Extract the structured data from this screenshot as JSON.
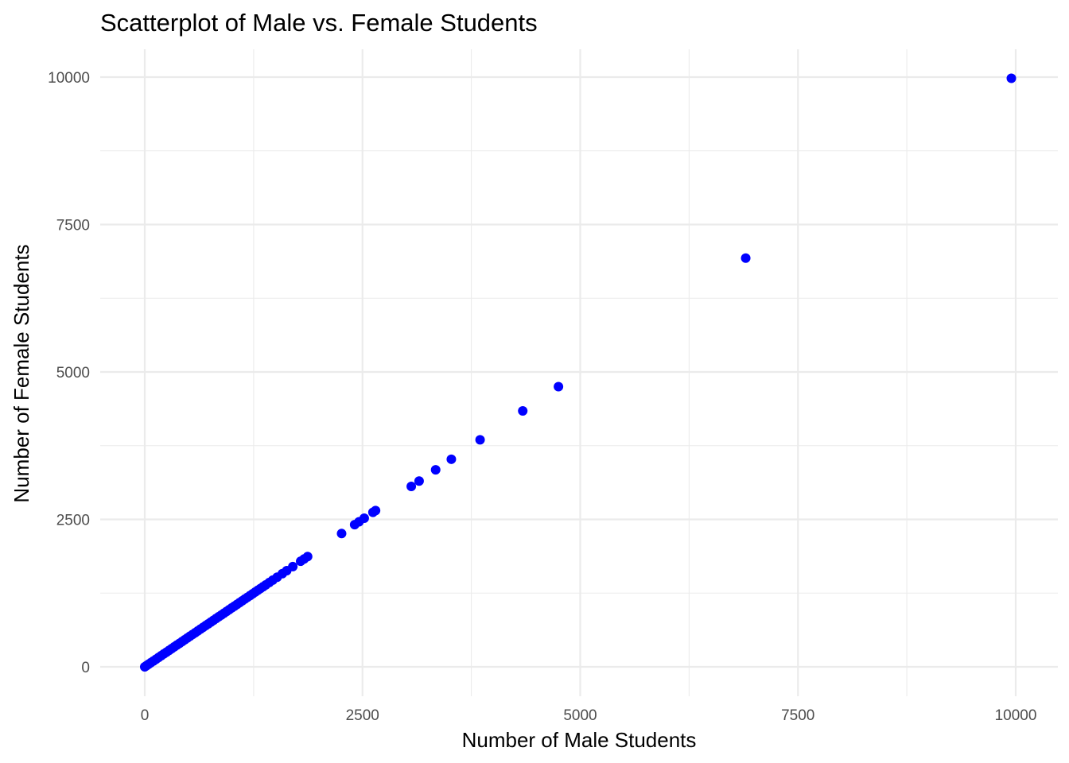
{
  "chart_data": {
    "type": "scatter",
    "title": "Scatterplot of Male vs. Female Students",
    "xlabel": "Number of Male Students",
    "ylabel": "Number of Female Students",
    "xlim": [
      -900,
      10000
    ],
    "ylim": [
      -450,
      10200
    ],
    "xticks": [
      0,
      2500,
      5000,
      7500,
      10000
    ],
    "yticks": [
      0,
      2500,
      5000,
      7500,
      10000
    ],
    "xtick_labels": [
      "0",
      "2500",
      "5000",
      "7500",
      "10000"
    ],
    "ytick_labels": [
      "0",
      "2500",
      "5000",
      "7500",
      "10000"
    ],
    "grid": true,
    "point_color": "#0000ff",
    "series": [
      {
        "x": [
          0,
          20,
          45,
          70,
          100,
          130,
          160,
          190,
          220,
          250,
          280,
          310,
          340,
          370,
          400,
          430,
          460,
          490,
          520,
          550,
          580,
          610,
          640,
          670,
          700,
          730,
          760,
          790,
          820,
          850,
          880,
          910,
          940,
          970,
          1000,
          1030,
          1060,
          1090,
          1120,
          1150,
          1180,
          1210,
          1240,
          1270,
          1300,
          1330,
          1360,
          1390,
          1430,
          1470,
          1520,
          1580,
          1630,
          1700,
          1790,
          1830,
          1870,
          2260,
          2410,
          2460,
          2520,
          2620,
          2650,
          3060,
          3150,
          3340,
          3520,
          3850,
          4340,
          4750,
          6900,
          9950
        ],
        "y": [
          0,
          20,
          45,
          70,
          100,
          130,
          160,
          190,
          220,
          250,
          280,
          310,
          340,
          370,
          400,
          430,
          460,
          490,
          520,
          550,
          580,
          610,
          640,
          670,
          700,
          730,
          760,
          790,
          820,
          850,
          880,
          910,
          940,
          970,
          1000,
          1030,
          1060,
          1090,
          1120,
          1150,
          1180,
          1210,
          1240,
          1270,
          1300,
          1330,
          1360,
          1390,
          1430,
          1470,
          1520,
          1580,
          1630,
          1700,
          1790,
          1830,
          1870,
          2260,
          2410,
          2460,
          2520,
          2620,
          2650,
          3060,
          3150,
          3340,
          3520,
          3850,
          4340,
          4750,
          6930,
          9980
        ]
      }
    ]
  }
}
